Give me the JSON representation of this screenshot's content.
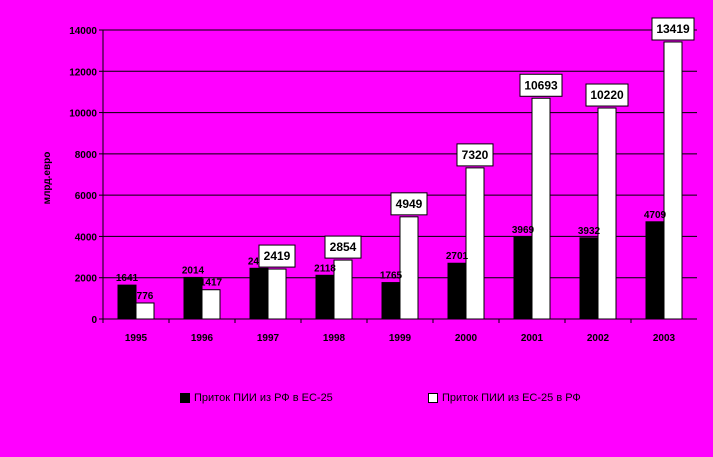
{
  "chart_data": {
    "type": "bar",
    "ylabel": "млрд.евро",
    "ylim": [
      0,
      14000
    ],
    "yticks": [
      0,
      2000,
      4000,
      6000,
      8000,
      10000,
      12000,
      14000
    ],
    "grid": true,
    "categories": [
      "1995",
      "1996",
      "1997",
      "1998",
      "1999",
      "2000",
      "2001",
      "2002",
      "2003"
    ],
    "series": [
      {
        "name": "Приток ПИИ из РФ в ЕС-25",
        "color": "#000000",
        "values": [
          1641,
          2014,
          2456,
          2118,
          1765,
          2701,
          3969,
          3932,
          4709
        ]
      },
      {
        "name": "Приток ПИИ из ЕС-25 в РФ",
        "color": "#ffffff",
        "values": [
          776,
          1417,
          2419,
          2854,
          4949,
          7320,
          10693,
          10220,
          13419
        ]
      }
    ],
    "legend_position": "bottom"
  }
}
